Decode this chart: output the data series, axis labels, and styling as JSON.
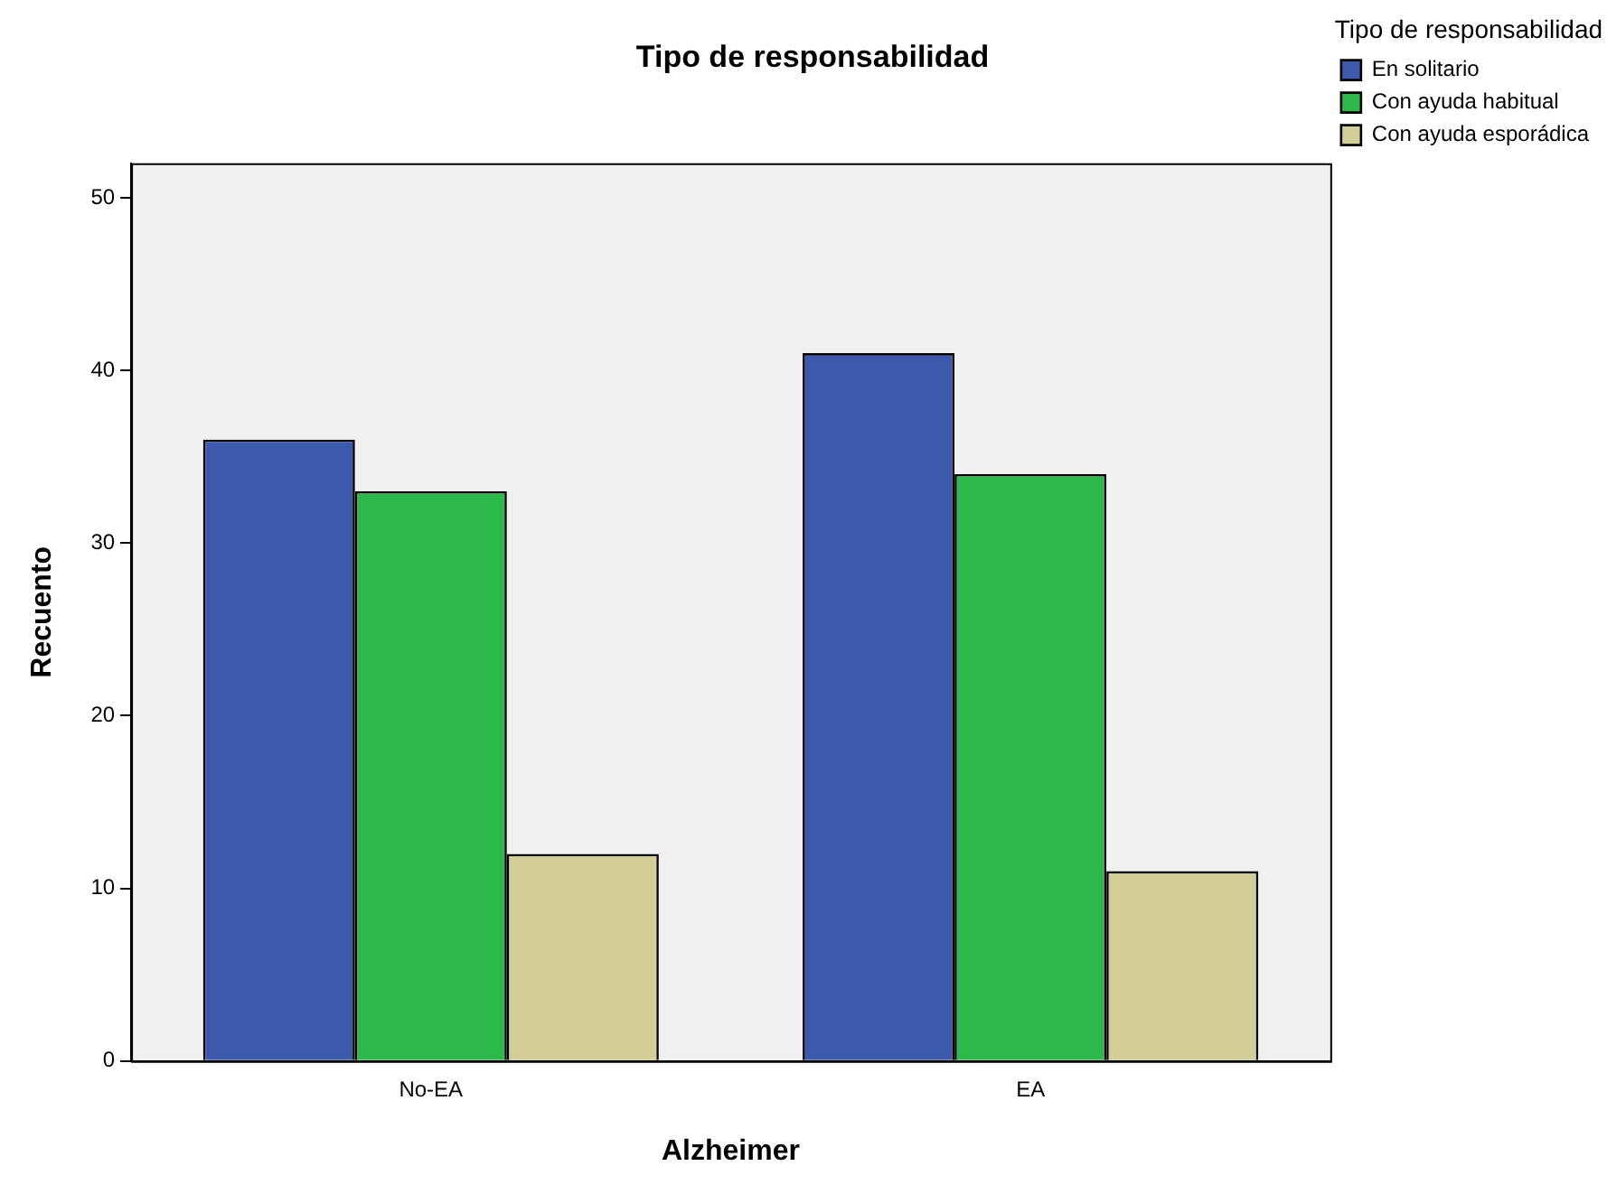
{
  "chart_data": {
    "type": "bar",
    "title": "Tipo de responsabilidad",
    "xlabel": "Alzheimer",
    "ylabel": "Recuento",
    "legend_title": "Tipo de responsabilidad",
    "categories": [
      "No-EA",
      "EA"
    ],
    "series": [
      {
        "name": "En solitario",
        "color": "#3d59ab",
        "values": [
          36,
          41
        ]
      },
      {
        "name": "Con ayuda habitual",
        "color": "#2db84a",
        "values": [
          33,
          34
        ]
      },
      {
        "name": "Con ayuda esporádica",
        "color": "#d3ce97",
        "values": [
          12,
          11
        ]
      }
    ],
    "ylim": [
      0,
      52
    ],
    "yticks": [
      0,
      10,
      20,
      30,
      40,
      50
    ],
    "grid": false,
    "legend": "top right"
  }
}
